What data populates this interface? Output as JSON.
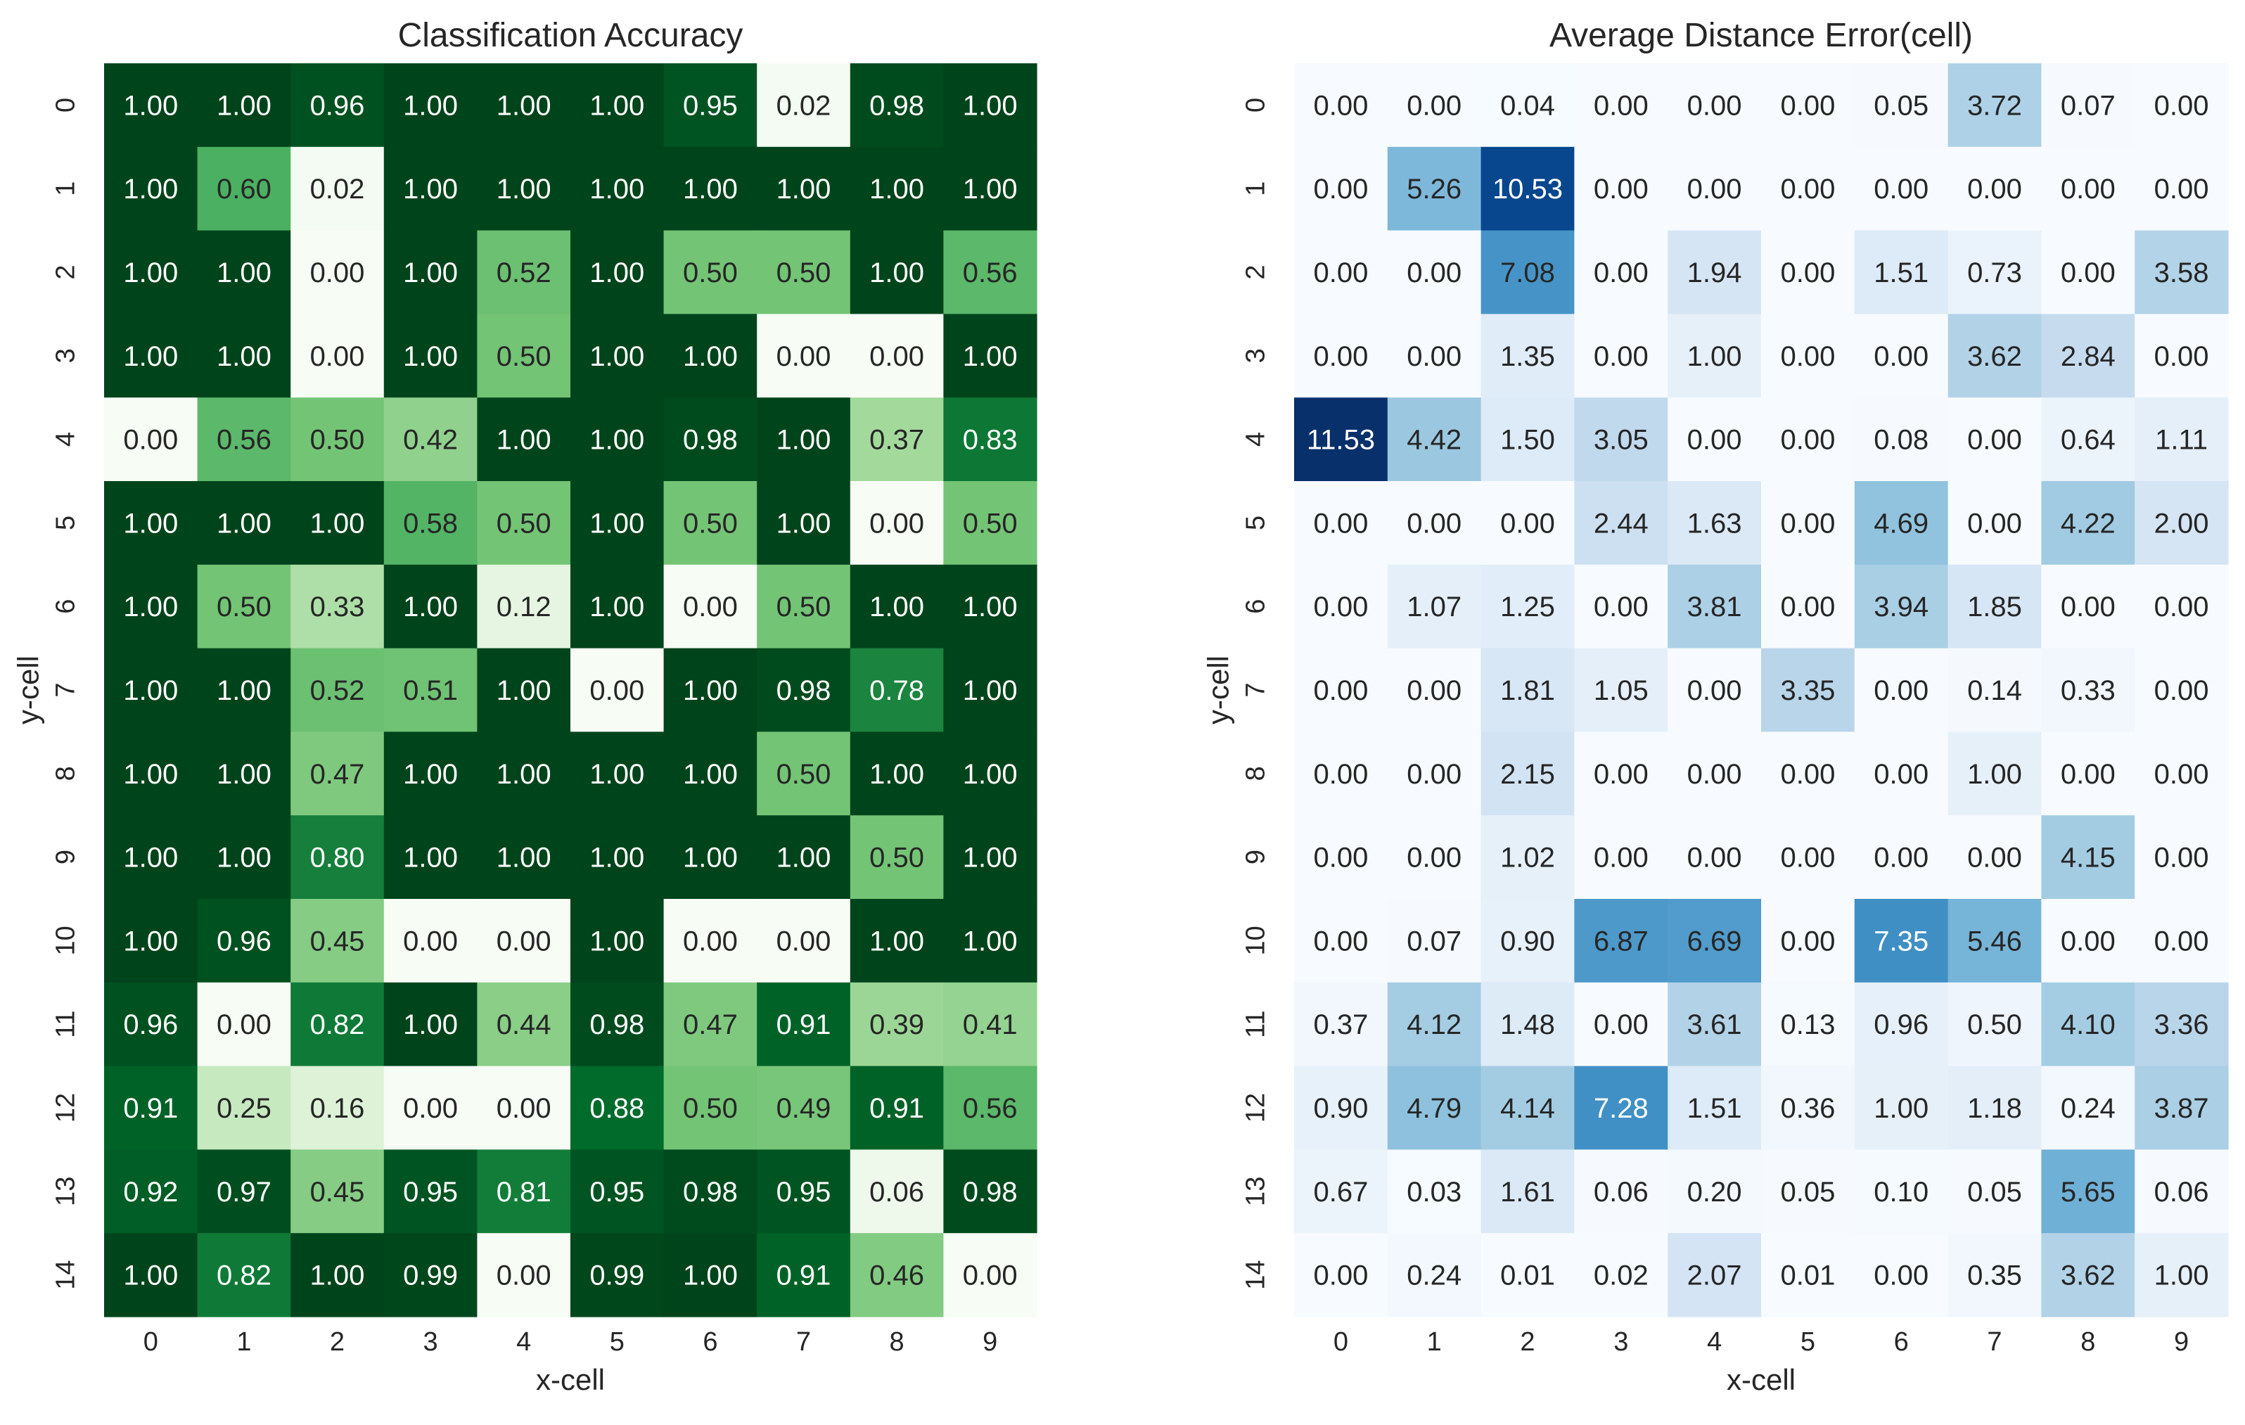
{
  "chart_data": [
    {
      "type": "heatmap",
      "title": "Classification Accuracy",
      "xlabel": "x-cell",
      "ylabel": "y-cell",
      "x_ticks": [
        "0",
        "1",
        "2",
        "3",
        "4",
        "5",
        "6",
        "7",
        "8",
        "9"
      ],
      "y_ticks": [
        "0",
        "1",
        "2",
        "3",
        "4",
        "5",
        "6",
        "7",
        "8",
        "9",
        "10",
        "11",
        "12",
        "13",
        "14"
      ],
      "colormap": "Greens",
      "vmin": 0,
      "vmax": 1,
      "colorbar": false,
      "values": [
        [
          1.0,
          1.0,
          0.96,
          1.0,
          1.0,
          1.0,
          0.95,
          0.02,
          0.98,
          1.0
        ],
        [
          1.0,
          0.6,
          0.02,
          1.0,
          1.0,
          1.0,
          1.0,
          1.0,
          1.0,
          1.0
        ],
        [
          1.0,
          1.0,
          0.0,
          1.0,
          0.52,
          1.0,
          0.5,
          0.5,
          1.0,
          0.56
        ],
        [
          1.0,
          1.0,
          0.0,
          1.0,
          0.5,
          1.0,
          1.0,
          0.0,
          0.0,
          1.0
        ],
        [
          0.0,
          0.56,
          0.5,
          0.42,
          1.0,
          1.0,
          0.98,
          1.0,
          0.37,
          0.83
        ],
        [
          1.0,
          1.0,
          1.0,
          0.58,
          0.5,
          1.0,
          0.5,
          1.0,
          0.0,
          0.5
        ],
        [
          1.0,
          0.5,
          0.33,
          1.0,
          0.12,
          1.0,
          0.0,
          0.5,
          1.0,
          1.0
        ],
        [
          1.0,
          1.0,
          0.52,
          0.51,
          1.0,
          0.0,
          1.0,
          0.98,
          0.78,
          1.0
        ],
        [
          1.0,
          1.0,
          0.47,
          1.0,
          1.0,
          1.0,
          1.0,
          0.5,
          1.0,
          1.0
        ],
        [
          1.0,
          1.0,
          0.8,
          1.0,
          1.0,
          1.0,
          1.0,
          1.0,
          0.5,
          1.0
        ],
        [
          1.0,
          0.96,
          0.45,
          0.0,
          0.0,
          1.0,
          0.0,
          0.0,
          1.0,
          1.0
        ],
        [
          0.96,
          0.0,
          0.82,
          1.0,
          0.44,
          0.98,
          0.47,
          0.91,
          0.39,
          0.41
        ],
        [
          0.91,
          0.25,
          0.16,
          0.0,
          0.0,
          0.88,
          0.5,
          0.49,
          0.91,
          0.56
        ],
        [
          0.92,
          0.97,
          0.45,
          0.95,
          0.81,
          0.95,
          0.98,
          0.95,
          0.06,
          0.98
        ],
        [
          1.0,
          0.82,
          1.0,
          0.99,
          0.0,
          0.99,
          1.0,
          0.91,
          0.46,
          0.0
        ]
      ]
    },
    {
      "type": "heatmap",
      "title": "Average Distance Error(cell)",
      "xlabel": "x-cell",
      "ylabel": "y-cell",
      "x_ticks": [
        "0",
        "1",
        "2",
        "3",
        "4",
        "5",
        "6",
        "7",
        "8",
        "9"
      ],
      "y_ticks": [
        "0",
        "1",
        "2",
        "3",
        "4",
        "5",
        "6",
        "7",
        "8",
        "9",
        "10",
        "11",
        "12",
        "13",
        "14"
      ],
      "colormap": "Blues",
      "vmin": 0,
      "vmax": 11.53,
      "colorbar": false,
      "values": [
        [
          0.0,
          0.0,
          0.04,
          0.0,
          0.0,
          0.0,
          0.05,
          3.72,
          0.07,
          0.0
        ],
        [
          0.0,
          5.26,
          10.53,
          0.0,
          0.0,
          0.0,
          0.0,
          0.0,
          0.0,
          0.0
        ],
        [
          0.0,
          0.0,
          7.08,
          0.0,
          1.94,
          0.0,
          1.51,
          0.73,
          0.0,
          3.58
        ],
        [
          0.0,
          0.0,
          1.35,
          0.0,
          1.0,
          0.0,
          0.0,
          3.62,
          2.84,
          0.0
        ],
        [
          11.53,
          4.42,
          1.5,
          3.05,
          0.0,
          0.0,
          0.08,
          0.0,
          0.64,
          1.11
        ],
        [
          0.0,
          0.0,
          0.0,
          2.44,
          1.63,
          0.0,
          4.69,
          0.0,
          4.22,
          2.0
        ],
        [
          0.0,
          1.07,
          1.25,
          0.0,
          3.81,
          0.0,
          3.94,
          1.85,
          0.0,
          0.0
        ],
        [
          0.0,
          0.0,
          1.81,
          1.05,
          0.0,
          3.35,
          0.0,
          0.14,
          0.33,
          0.0
        ],
        [
          0.0,
          0.0,
          2.15,
          0.0,
          0.0,
          0.0,
          0.0,
          1.0,
          0.0,
          0.0
        ],
        [
          0.0,
          0.0,
          1.02,
          0.0,
          0.0,
          0.0,
          0.0,
          0.0,
          4.15,
          0.0
        ],
        [
          0.0,
          0.07,
          0.9,
          6.87,
          6.69,
          0.0,
          7.35,
          5.46,
          0.0,
          0.0
        ],
        [
          0.37,
          4.12,
          1.48,
          0.0,
          3.61,
          0.13,
          0.96,
          0.5,
          4.1,
          3.36
        ],
        [
          0.9,
          4.79,
          4.14,
          7.28,
          1.51,
          0.36,
          1.0,
          1.18,
          0.24,
          3.87
        ],
        [
          0.67,
          0.03,
          1.61,
          0.06,
          0.2,
          0.05,
          0.1,
          0.05,
          5.65,
          0.06
        ],
        [
          0.0,
          0.24,
          0.01,
          0.02,
          2.07,
          0.01,
          0.0,
          0.35,
          3.62,
          1.0
        ]
      ]
    }
  ]
}
